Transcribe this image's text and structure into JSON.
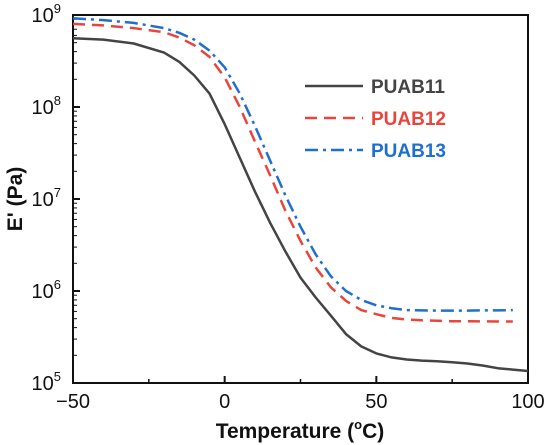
{
  "chart_data": {
    "type": "line",
    "xlabel": "Temperature (°C)",
    "xlabel_parts": [
      "Temperature (",
      "o",
      "C)"
    ],
    "ylabel": "E' (Pa)",
    "xlim": [
      -50,
      100
    ],
    "ylim": [
      100000,
      1000000000
    ],
    "y_scale": "log",
    "x_ticks": [
      -50,
      0,
      50,
      100
    ],
    "x_tick_labels": [
      "−50",
      "0",
      "50",
      "100"
    ],
    "y_tick_exponents": [
      5,
      6,
      7,
      8,
      9
    ],
    "y_tick_base": "10",
    "legend_position": "top-right",
    "series": [
      {
        "name": "PUAB11",
        "color": "#444444",
        "dash": "solid",
        "x": [
          -50,
          -40,
          -30,
          -20,
          -15,
          -10,
          -5,
          0,
          5,
          10,
          15,
          20,
          25,
          30,
          35,
          40,
          45,
          50,
          55,
          60,
          65,
          70,
          75,
          80,
          85,
          90,
          95,
          100
        ],
        "y": [
          560000000,
          540000000,
          490000000,
          390000000,
          310000000,
          220000000,
          140000000,
          65000000,
          28000000,
          12000000,
          5500000,
          2700000,
          1400000,
          850000,
          540000,
          340000,
          250000,
          210000,
          190000,
          180000,
          175000,
          172000,
          168000,
          163000,
          155000,
          145000,
          140000,
          135000
        ]
      },
      {
        "name": "PUAB12",
        "color": "#e8463c",
        "dash": "dashed",
        "x": [
          -50,
          -40,
          -30,
          -20,
          -15,
          -10,
          -5,
          0,
          5,
          10,
          15,
          20,
          25,
          30,
          35,
          40,
          45,
          50,
          55,
          60,
          65,
          70,
          75,
          80,
          85,
          90,
          95
        ],
        "y": [
          800000000,
          770000000,
          720000000,
          650000000,
          570000000,
          470000000,
          350000000,
          210000000,
          100000000,
          42000000,
          18000000,
          7500000,
          3500000,
          1800000,
          1100000,
          780000,
          620000,
          560000,
          510000,
          490000,
          480000,
          475000,
          470000,
          468000,
          467000,
          466000,
          466000
        ]
      },
      {
        "name": "PUAB13",
        "color": "#1f6fd1",
        "dash": "dashdot",
        "x": [
          -50,
          -40,
          -30,
          -20,
          -15,
          -10,
          -5,
          0,
          5,
          10,
          15,
          20,
          25,
          30,
          35,
          40,
          45,
          50,
          55,
          60,
          65,
          70,
          75,
          80,
          85,
          90,
          95
        ],
        "y": [
          920000000,
          880000000,
          820000000,
          720000000,
          640000000,
          540000000,
          410000000,
          270000000,
          140000000,
          62000000,
          26000000,
          11000000,
          5000000,
          2500000,
          1450000,
          1000000,
          800000,
          700000,
          650000,
          620000,
          615000,
          612000,
          612000,
          612000,
          615000,
          615000,
          620000
        ]
      }
    ]
  }
}
